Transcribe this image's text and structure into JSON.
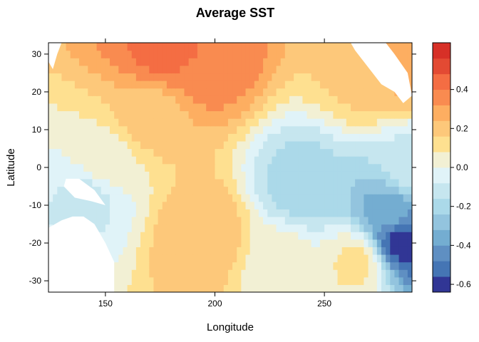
{
  "chart_data": {
    "type": "heatmap",
    "title": "Average SST",
    "xlabel": "Longitude",
    "ylabel": "Latitude",
    "xlim": [
      124,
      290
    ],
    "ylim": [
      -33,
      33
    ],
    "x_ticks": [
      150,
      200,
      250
    ],
    "y_ticks": [
      30,
      20,
      10,
      0,
      -10,
      -20,
      -30
    ],
    "grid": false,
    "colorbar": {
      "position": "right",
      "range": [
        -0.64,
        0.64
      ],
      "breaks": [
        -0.64,
        -0.56,
        -0.48,
        -0.4,
        -0.32,
        -0.24,
        -0.16,
        -0.08,
        0.0,
        0.08,
        0.16,
        0.24,
        0.32,
        0.4,
        0.48,
        0.56,
        0.64
      ],
      "colors": [
        "#313695",
        "#4575b4",
        "#5f8fc2",
        "#74add1",
        "#93c4de",
        "#abd9e9",
        "#c6e6ef",
        "#e0f3f8",
        "#f2f0d4",
        "#fee090",
        "#fdc87a",
        "#fdae61",
        "#f98b50",
        "#f46d43",
        "#e34a33",
        "#d73027",
        "#a50026"
      ],
      "tick_values": [
        0.4,
        0.2,
        0.0,
        -0.2,
        -0.4,
        -0.6
      ],
      "tick_labels": [
        "0.4",
        "0.2",
        "0.0",
        "-0.2",
        "-0.4",
        "-0.6"
      ]
    },
    "field_description": "Average SST anomaly by longitude/latitude; warm (red) in north and central-south Pacific, cool (blue) near eastern equatorial and southeast Pacific",
    "hotspots": [
      {
        "lon": 175,
        "lat": 31,
        "value": 0.42
      },
      {
        "lon": 195,
        "lat": 30,
        "value": 0.4
      },
      {
        "lon": 285,
        "lat": 28,
        "value": 0.3
      },
      {
        "lon": 170,
        "lat": 14,
        "value": 0.2
      },
      {
        "lon": 195,
        "lat": -18,
        "value": 0.24
      },
      {
        "lon": 270,
        "lat": 25,
        "value": 0.18
      },
      {
        "lon": 240,
        "lat": -5,
        "value": -0.2
      },
      {
        "lon": 285,
        "lat": -19,
        "value": -0.6
      },
      {
        "lon": 280,
        "lat": -12,
        "value": -0.35
      },
      {
        "lon": 142,
        "lat": -8,
        "value": -0.1
      },
      {
        "lon": 290,
        "lat": 0,
        "value": -0.1
      },
      {
        "lon": 150,
        "lat": 2,
        "value": 0.05
      },
      {
        "lon": 230,
        "lat": -25,
        "value": 0.04
      },
      {
        "lon": 265,
        "lat": -25,
        "value": 0.1
      }
    ],
    "land_masks": [
      {
        "name": "australia",
        "points": [
          [
            124,
            -16
          ],
          [
            130,
            -14
          ],
          [
            135,
            -13
          ],
          [
            140,
            -13
          ],
          [
            145,
            -15
          ],
          [
            150,
            -20
          ],
          [
            154,
            -25
          ],
          [
            154,
            -33
          ],
          [
            124,
            -33
          ]
        ]
      },
      {
        "name": "new-guinea",
        "points": [
          [
            132,
            -3
          ],
          [
            138,
            -3
          ],
          [
            145,
            -6
          ],
          [
            150,
            -10
          ],
          [
            144,
            -9
          ],
          [
            136,
            -8
          ],
          [
            131,
            -5
          ]
        ]
      },
      {
        "name": "asia-corner",
        "points": [
          [
            124,
            33
          ],
          [
            124,
            28
          ],
          [
            126,
            26
          ],
          [
            128,
            30
          ],
          [
            130,
            33
          ]
        ]
      },
      {
        "name": "mexico",
        "points": [
          [
            262,
            33
          ],
          [
            278,
            33
          ],
          [
            282,
            30
          ],
          [
            288,
            25
          ],
          [
            290,
            19
          ],
          [
            286,
            17
          ],
          [
            282,
            20
          ],
          [
            276,
            22
          ],
          [
            272,
            25
          ],
          [
            268,
            28
          ],
          [
            264,
            31
          ]
        ]
      }
    ]
  }
}
